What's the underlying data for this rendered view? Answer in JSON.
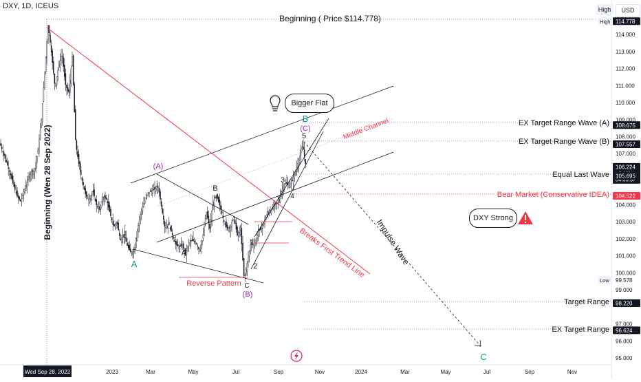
{
  "header": {
    "symbol": "DXY, 1D, ICEUS",
    "high_badge": "High",
    "currency": "USD",
    "low_badge": "Low"
  },
  "chart_data": {
    "type": "candlestick",
    "y_range": [
      94.6,
      115.7
    ],
    "x_ticks": [
      "Nov",
      "2023",
      "Mar",
      "May",
      "Jul",
      "Sep",
      "Nov",
      "2024",
      "Mar",
      "May",
      "Jul",
      "Sep",
      "Nov"
    ],
    "y_ticks": [
      "114.000",
      "113.000",
      "112.000",
      "111.000",
      "110.000",
      "109.000",
      "108.000",
      "107.000",
      "104.000",
      "103.000",
      "102.000",
      "101.000",
      "100.000",
      "99.000",
      "97.000",
      "96.000",
      "95.000"
    ],
    "price_tags": [
      {
        "label": "High",
        "value": "114.778",
        "price": 114.78,
        "style": "dark"
      },
      {
        "value": "108.675",
        "price": 108.675,
        "style": "dark"
      },
      {
        "value": "107.557",
        "price": 107.557,
        "style": "dark"
      },
      {
        "value": "106.224",
        "sub1": "−0.42%",
        "sub2": "04:35:37",
        "price": 106.224,
        "style": "dark"
      },
      {
        "value": "105.695",
        "price": 105.695,
        "style": "dark"
      },
      {
        "value": "104.522",
        "price": 104.522,
        "style": "red"
      },
      {
        "label": "Low",
        "value": "99.578",
        "price": 99.578,
        "style": "plain"
      },
      {
        "value": "98.220",
        "price": 98.22,
        "style": "dark"
      },
      {
        "value": "96.624",
        "price": 96.624,
        "style": "dark"
      }
    ],
    "date_tag": "Wed Sep 28, 2022",
    "series": [
      {
        "price_path": [
          [
            0,
            107.6
          ],
          [
            5,
            107.0
          ],
          [
            10,
            106.4
          ],
          [
            15,
            105.8
          ],
          [
            20,
            105.1
          ],
          [
            25,
            104.5
          ],
          [
            30,
            104.2
          ],
          [
            35,
            104.8
          ],
          [
            40,
            105.4
          ],
          [
            45,
            105.9
          ],
          [
            50,
            106.0
          ],
          [
            55,
            107.1
          ],
          [
            60,
            108.9
          ],
          [
            65,
            111.8
          ],
          [
            70,
            114.6
          ],
          [
            75,
            112.8
          ],
          [
            80,
            110.9
          ],
          [
            85,
            112.1
          ],
          [
            90,
            112.9
          ],
          [
            95,
            111.1
          ],
          [
            100,
            110.5
          ],
          [
            105,
            112.7
          ],
          [
            110,
            107.6
          ],
          [
            115,
            106.3
          ],
          [
            120,
            105.3
          ],
          [
            125,
            104.5
          ],
          [
            130,
            104.3
          ],
          [
            135,
            104.8
          ],
          [
            140,
            104.0
          ],
          [
            145,
            103.7
          ],
          [
            150,
            104.5
          ],
          [
            155,
            104.3
          ],
          [
            160,
            103.5
          ],
          [
            165,
            102.7
          ],
          [
            170,
            103.0
          ],
          [
            175,
            101.9
          ],
          [
            180,
            102.3
          ],
          [
            185,
            101.6
          ],
          [
            190,
            101.2
          ],
          [
            195,
            101.3
          ],
          [
            200,
            102.6
          ],
          [
            205,
            103.6
          ],
          [
            210,
            104.2
          ],
          [
            215,
            104.7
          ],
          [
            220,
            104.8
          ],
          [
            225,
            104.9
          ],
          [
            230,
            105.1
          ],
          [
            235,
            103.8
          ],
          [
            240,
            102.6
          ],
          [
            245,
            102.9
          ],
          [
            250,
            102.3
          ],
          [
            255,
            101.7
          ],
          [
            260,
            101.5
          ],
          [
            265,
            101.6
          ],
          [
            270,
            101.1
          ],
          [
            275,
            101.8
          ],
          [
            280,
            101.9
          ],
          [
            285,
            101.8
          ],
          [
            290,
            101.3
          ],
          [
            295,
            102.1
          ],
          [
            300,
            103.6
          ],
          [
            305,
            102.6
          ],
          [
            310,
            104.2
          ],
          [
            315,
            104.5
          ],
          [
            320,
            103.9
          ],
          [
            325,
            103.1
          ],
          [
            330,
            102.6
          ],
          [
            335,
            102.7
          ],
          [
            340,
            103.3
          ],
          [
            345,
            102.2
          ],
          [
            350,
            102.5
          ],
          [
            355,
            99.6
          ],
          [
            360,
            100.7
          ],
          [
            365,
            101.8
          ],
          [
            370,
            101.6
          ],
          [
            375,
            102.4
          ],
          [
            380,
            102.6
          ],
          [
            385,
            103.1
          ],
          [
            390,
            103.6
          ],
          [
            395,
            103.7
          ],
          [
            400,
            104.0
          ],
          [
            405,
            104.2
          ],
          [
            410,
            104.9
          ],
          [
            415,
            105.3
          ],
          [
            420,
            105.1
          ],
          [
            425,
            105.4
          ],
          [
            430,
            106.0
          ],
          [
            435,
            106.7
          ],
          [
            440,
            107.5
          ],
          [
            445,
            106.2
          ]
        ]
      }
    ]
  },
  "annotations": {
    "beginning_price": "Beginning ( Price $114.778)",
    "beginning_date": "Beginning (Wen 28 Sep 2022)",
    "bigger_flat": "Bigger Flat",
    "dxy_strong": "DXY Strong",
    "middle_channel": "Middle Channel",
    "breaks_trend": "Breaks First Trend Line",
    "reverse_pattern": "Reverse Pattern",
    "impulse_wave": "Impulse Wave",
    "ex_target_a": "EX Target Range Wave (A)",
    "ex_target_b": "EX Target Range Wave (B)",
    "equal_last_wave": "Equal Last Wave",
    "bear_market": "Bear Market (Conservative IDEA)",
    "target_range": "Target Range",
    "ex_target_range": "EX Target Range",
    "wave_labels": [
      {
        "text": "A",
        "color": "#089981",
        "x": 195,
        "y": 388,
        "size": 13
      },
      {
        "text": "(A)",
        "color": "#9c27b0",
        "x": 230,
        "y": 245,
        "size": 11
      },
      {
        "text": "A",
        "color": "#131722",
        "x": 267,
        "y": 371,
        "size": 10
      },
      {
        "text": "B",
        "color": "#131722",
        "x": 313,
        "y": 277,
        "size": 11
      },
      {
        "text": "C",
        "color": "#131722",
        "x": 359,
        "y": 418,
        "size": 10
      },
      {
        "text": "(B)",
        "color": "#9c27b0",
        "x": 360,
        "y": 431,
        "size": 11
      },
      {
        "text": "1",
        "color": "#131722",
        "x": 366,
        "y": 355,
        "size": 10
      },
      {
        "text": "2",
        "color": "#131722",
        "x": 371,
        "y": 390,
        "size": 11
      },
      {
        "text": "3",
        "color": "#131722",
        "x": 411,
        "y": 265,
        "size": 11
      },
      {
        "text": "4",
        "color": "#131722",
        "x": 425,
        "y": 288,
        "size": 10
      },
      {
        "text": "5",
        "color": "#131722",
        "x": 442,
        "y": 201,
        "size": 11
      },
      {
        "text": "(C)",
        "color": "#9c27b0",
        "x": 444,
        "y": 190,
        "size": 11
      },
      {
        "text": "B",
        "color": "#089981",
        "x": 444,
        "y": 177,
        "size": 13
      },
      {
        "text": "C",
        "color": "#089981",
        "x": 703,
        "y": 523,
        "size": 13
      }
    ]
  }
}
